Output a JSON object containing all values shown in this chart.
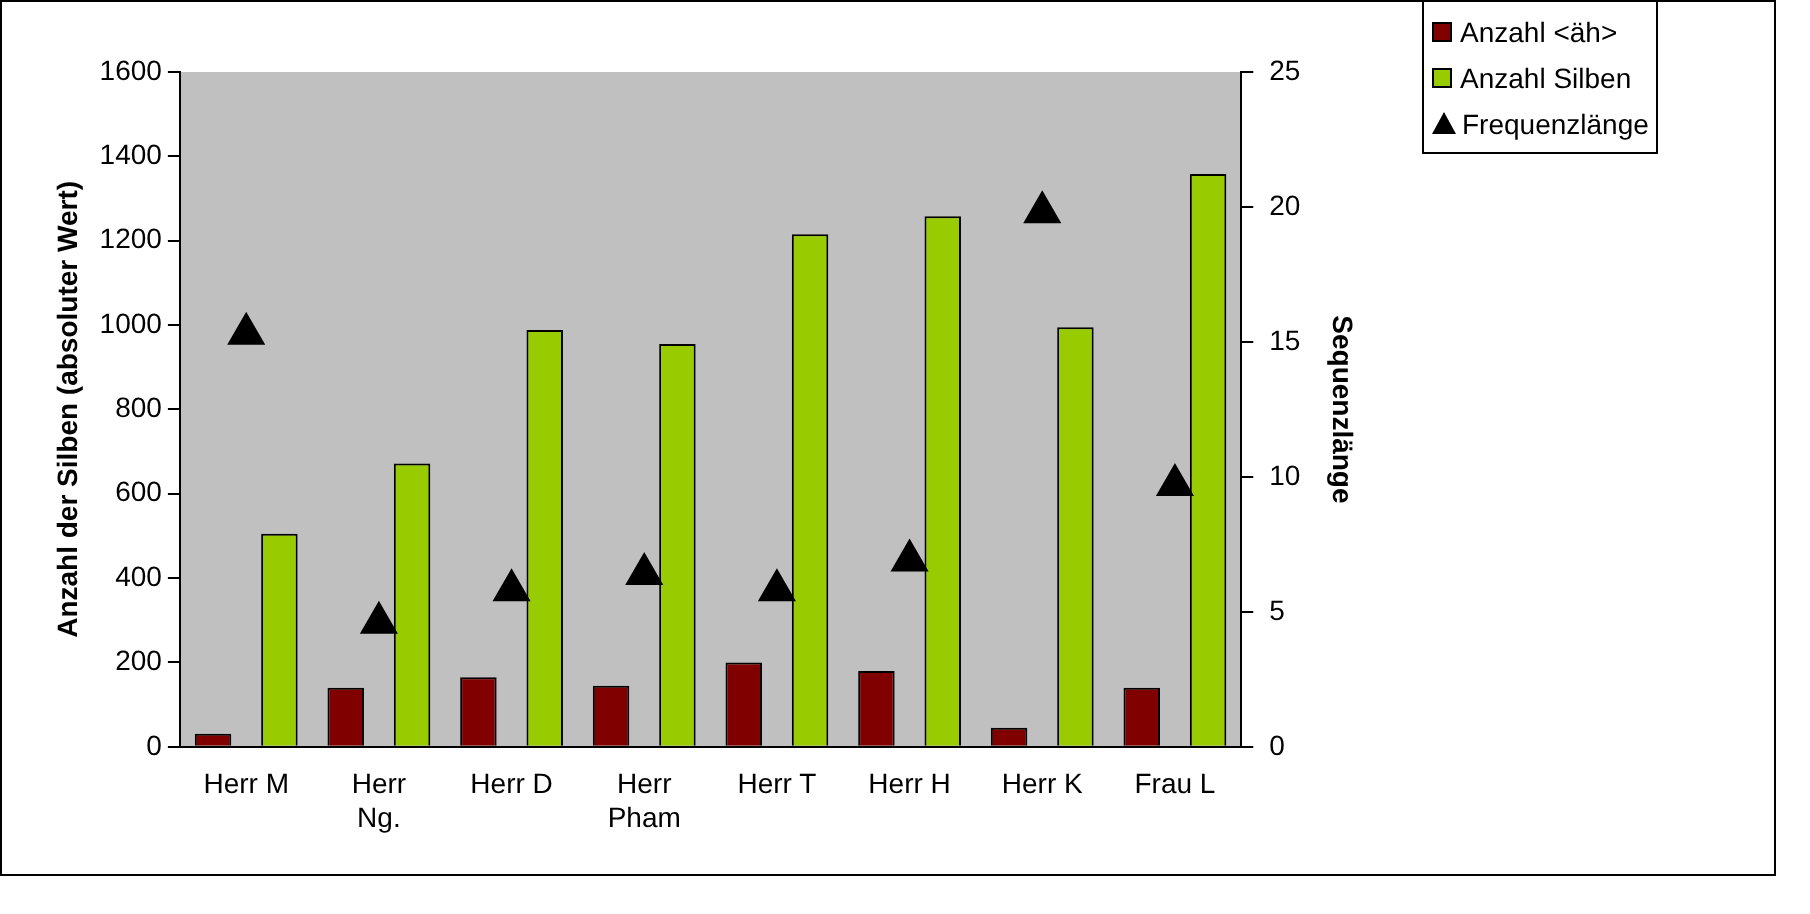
{
  "chart_data": {
    "type": "bar",
    "categories": [
      "Herr M",
      "Herr Ng.",
      "Herr D",
      "Herr Pham",
      "Herr T",
      "Herr H",
      "Herr K",
      "Frau L"
    ],
    "series": [
      {
        "name": "Anzahl <äh>",
        "color": "#800000",
        "values": [
          31,
          140,
          165,
          145,
          200,
          180,
          45,
          140
        ]
      },
      {
        "name": "Anzahl Silben",
        "color": "#99cc00",
        "values": [
          505,
          672,
          988,
          955,
          1215,
          1258,
          995,
          1358
        ]
      },
      {
        "name": "Frequenzlänge",
        "type": "scatter",
        "axis": "y2",
        "marker": "triangle",
        "color": "#000000",
        "x": [
          "Herr M",
          "Herr Ng.",
          "Herr D",
          "Herr Pham",
          "Herr T",
          "Herr H",
          "Herr K",
          "Frau L"
        ],
        "values": [
          15.3,
          4.6,
          5.8,
          6.4,
          5.8,
          6.9,
          19.8,
          9.7
        ]
      }
    ],
    "ylabel": "Anzahl der Silben (absoluter Wert)",
    "y2label": "Sequenzlänge",
    "ylim": [
      0,
      1600
    ],
    "yticks": [
      0,
      200,
      400,
      600,
      800,
      1000,
      1200,
      1400,
      1600
    ],
    "y2lim": [
      0,
      25
    ],
    "y2ticks": [
      0,
      5,
      10,
      15,
      20,
      25
    ],
    "grid": false,
    "legend": "top right"
  }
}
